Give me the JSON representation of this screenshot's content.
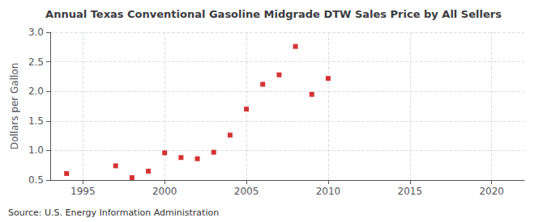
{
  "chart_data": {
    "type": "scatter",
    "title": "Annual Texas Conventional Gasoline Midgrade DTW Sales Price by All Sellers",
    "ylabel": "Dollars per Gallon",
    "source": "Source: U.S. Energy Information Administration",
    "x": [
      1994,
      1997,
      1998,
      1999,
      2000,
      2001,
      2002,
      2003,
      2004,
      2005,
      2006,
      2007,
      2008,
      2009,
      2010
    ],
    "values": [
      0.61,
      0.74,
      0.54,
      0.65,
      0.96,
      0.88,
      0.86,
      0.97,
      1.26,
      1.7,
      2.12,
      2.28,
      2.76,
      1.95,
      2.22
    ],
    "color": "#cc0000",
    "marker": "square",
    "xlim": [
      1993,
      2022
    ],
    "ylim": [
      0.5,
      3.0
    ],
    "xticks": [
      1995,
      2000,
      2005,
      2010,
      2015,
      2020
    ],
    "yticks": [
      0.5,
      {
        "value": 1.0,
        "label": "1.0"
      },
      1.5,
      {
        "value": 2.0,
        "label": "2.0"
      },
      2.5,
      {
        "value": 3.0,
        "label": "3.0"
      }
    ],
    "grid": true
  }
}
